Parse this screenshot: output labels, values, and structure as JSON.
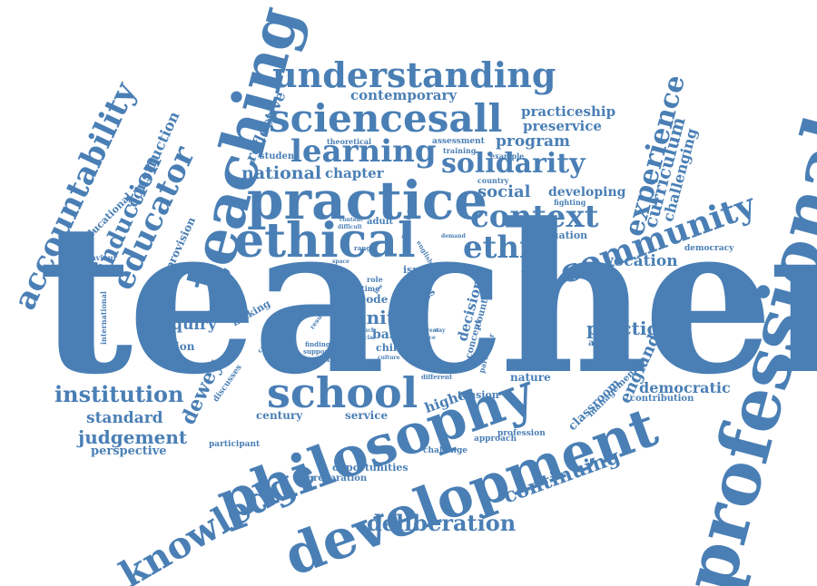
{
  "words": {
    "teacher": "teacher",
    "professional": "professional",
    "teaching": "teaching",
    "philosophy": "philosophy",
    "development": "development",
    "practice": "practice",
    "understanding": "understanding",
    "sciencesall": "sciencesall",
    "ethical": "ethical",
    "community": "community",
    "learning": "learning",
    "solidarity": "solidarity",
    "context": "context",
    "experience": "experience",
    "school": "school",
    "knowledge": "knowledge",
    "accountability": "accountability",
    "educator": "educator",
    "ethic": "ethic",
    "deliberation": "deliberation",
    "continuing": "continuing",
    "institution": "institution",
    "judgement": "judgement",
    "standard": "standard",
    "perspective": "perspective",
    "enquiry": "enquiry",
    "section": "section",
    "dewey": "dewey",
    "induction": "induction",
    "construction": "construction",
    "educational": "educational",
    "provision": "provision",
    "contemporary": "contemporary",
    "practiceship": "practiceship",
    "preservice": "preservice",
    "program": "program",
    "national": "national",
    "chapter": "chapter",
    "social": "social",
    "developing": "developing",
    "curriculum": "curriculum",
    "challenging": "challenging",
    "vocation": "vocation",
    "democracy": "democracy",
    "situation": "situation",
    "policy": "policy",
    "practical": "practical",
    "applied": "applied",
    "england": "england",
    "democratic": "democratic",
    "contribution": "contribution",
    "classroom": "classroom",
    "management": "management",
    "nature": "nature",
    "tension": "tension",
    "higher": "higher",
    "service": "service",
    "century": "century",
    "opportunities": "opportunities",
    "preparation": "preparation",
    "approach": "approach",
    "profession": "profession",
    "challenge": "challenge",
    "participant": "participant",
    "discusses": "discusses",
    "reflective": "reflective",
    "student": "student",
    "theoretical": "theoretical",
    "assessment": "assessment",
    "training": "training",
    "example": "example",
    "country": "country",
    "fighting": "fighting",
    "initial": "initial",
    "based": "based",
    "child": "child",
    "enable": "enable",
    "decision": "decision",
    "countrie": "countrie",
    "concept": "concept",
    "particular": "particular",
    "complex": "complex",
    "disguise": "disguise",
    "isues": "isues",
    "tutor": "tutor",
    "code": "code",
    "cross": "cross",
    "survey": "survey",
    "article": "article",
    "role": "role",
    "time": "time",
    "making": "making",
    "question": "question",
    "international": "international",
    "behaviour": "behaviour",
    "notion": "notion",
    "range": "range",
    "adult": "adult",
    "research": "research",
    "english": "english",
    "demand": "demand",
    "content": "content",
    "difficult": "difficult",
    "finding": "finding",
    "support": "support",
    "concern": "concern",
    "culture": "culture",
    "result": "result",
    "capacity": "capacity",
    "different": "different",
    "study": "study",
    "space": "space",
    "pupil": "pupil",
    "racial": "racial",
    "retreat": "retreat",
    "touch": "touch",
    "low": "low",
    "subject": "subject",
    "place": "place",
    "way": "way"
  },
  "colors": {
    "word": "#4a7fb5",
    "background": "#ffffff"
  }
}
